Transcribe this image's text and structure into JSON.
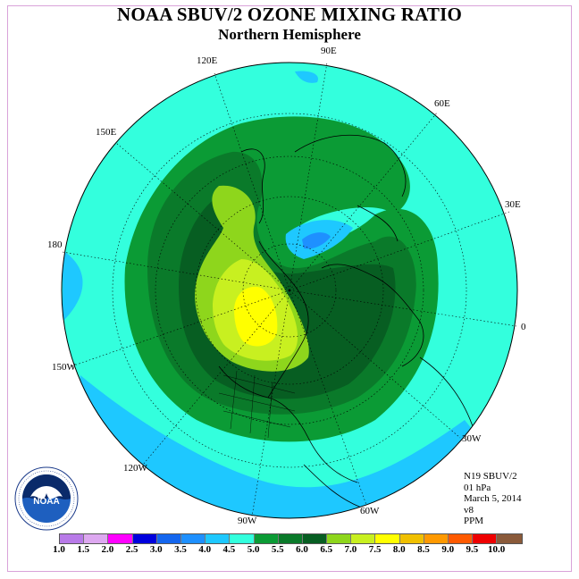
{
  "title": "NOAA SBUV/2 OZONE MIXING RATIO",
  "subtitle": "Northern Hemisphere",
  "longitude_labels": [
    "90E",
    "60E",
    "30E",
    "0",
    "30W",
    "60W",
    "90W",
    "120W",
    "150W",
    "180",
    "150E",
    "120E"
  ],
  "info": {
    "satellite": "N19 SBUV/2",
    "level": "01 hPa",
    "date": "March 5, 2014",
    "version": "v8",
    "units": "PPM"
  },
  "legend": {
    "ticks": [
      "1.0",
      "1.5",
      "2.0",
      "2.5",
      "3.0",
      "3.5",
      "4.0",
      "4.5",
      "5.0",
      "5.5",
      "6.0",
      "6.5",
      "7.0",
      "7.5",
      "8.0",
      "8.5",
      "9.0",
      "9.5",
      "10.0"
    ],
    "colors": [
      "#b87ae8",
      "#dda8f0",
      "#ff00ff",
      "#0000dd",
      "#1466ee",
      "#1e90ff",
      "#1ec8ff",
      "#33ffdd",
      "#0b9b35",
      "#0a7a2a",
      "#075e22",
      "#8ed61c",
      "#c8f020",
      "#ffff00",
      "#f0c000",
      "#ff9900",
      "#ff5a00",
      "#ee0000",
      "#8a5a3a"
    ]
  },
  "logo_text": "NOAA"
}
